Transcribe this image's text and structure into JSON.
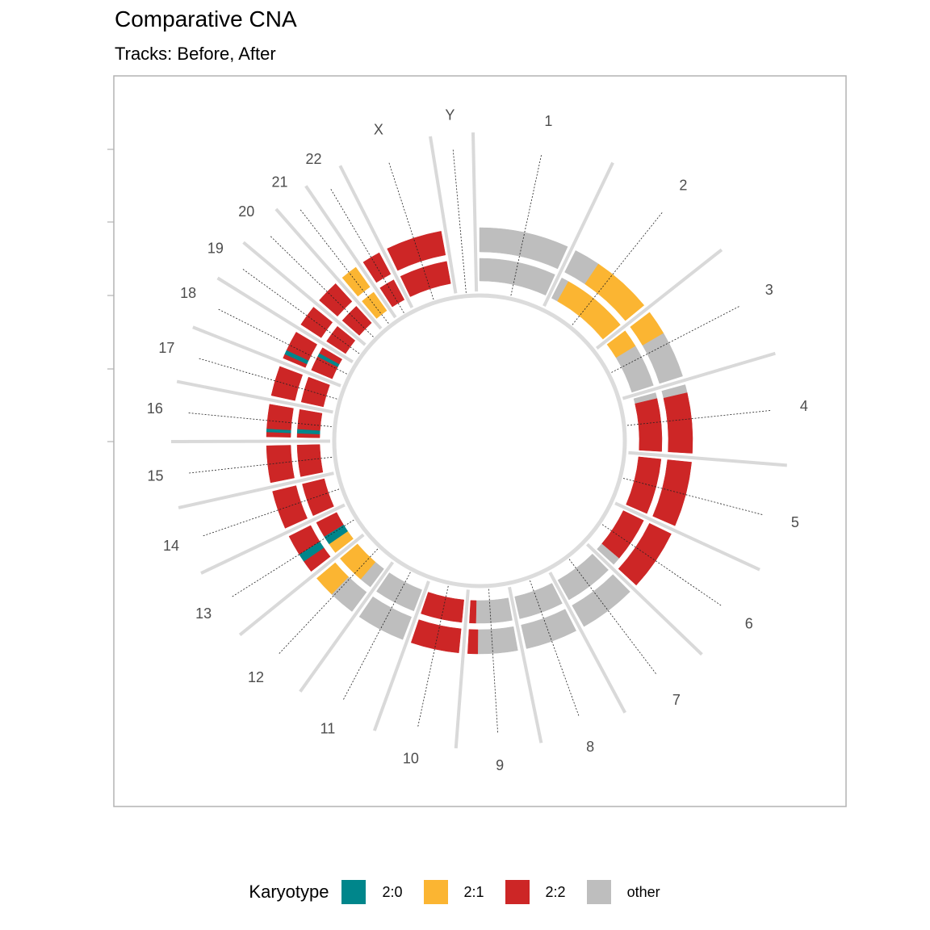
{
  "title": "Comparative CNA",
  "subtitle": "Tracks: Before, After",
  "legend": {
    "title": "Karyotype",
    "items": [
      {
        "label": "2:0",
        "color": "#00868B"
      },
      {
        "label": "2:1",
        "color": "#FBB532"
      },
      {
        "label": "2:2",
        "color": "#CD2626"
      },
      {
        "label": "other",
        "color": "#BEBEBE"
      }
    ]
  },
  "chart_data": {
    "type": "circos",
    "tracks": [
      "Before",
      "After"
    ],
    "chromosomes": [
      {
        "name": "1",
        "length": 249
      },
      {
        "name": "2",
        "length": 242
      },
      {
        "name": "3",
        "length": 198
      },
      {
        "name": "4",
        "length": 190
      },
      {
        "name": "5",
        "length": 181
      },
      {
        "name": "6",
        "length": 171
      },
      {
        "name": "7",
        "length": 159
      },
      {
        "name": "8",
        "length": 145
      },
      {
        "name": "9",
        "length": 138
      },
      {
        "name": "10",
        "length": 134
      },
      {
        "name": "11",
        "length": 135
      },
      {
        "name": "12",
        "length": 133
      },
      {
        "name": "13",
        "length": 114
      },
      {
        "name": "14",
        "length": 107
      },
      {
        "name": "15",
        "length": 102
      },
      {
        "name": "16",
        "length": 90
      },
      {
        "name": "17",
        "length": 83
      },
      {
        "name": "18",
        "length": 80
      },
      {
        "name": "19",
        "length": 59
      },
      {
        "name": "20",
        "length": 64
      },
      {
        "name": "21",
        "length": 47
      },
      {
        "name": "22",
        "length": 51
      },
      {
        "name": "X",
        "length": 156
      },
      {
        "name": "Y",
        "length": 57
      }
    ],
    "segments": {
      "Before": [
        {
          "chr": "1",
          "from": 0,
          "to": 1,
          "karyotype": "other"
        },
        {
          "chr": "2",
          "from": 0,
          "to": 0.3,
          "karyotype": "other"
        },
        {
          "chr": "2",
          "from": 0.3,
          "to": 1,
          "karyotype": "2:1"
        },
        {
          "chr": "3",
          "from": 0,
          "to": 0.35,
          "karyotype": "2:1"
        },
        {
          "chr": "3",
          "from": 0.35,
          "to": 1,
          "karyotype": "other"
        },
        {
          "chr": "4",
          "from": 0,
          "to": 0.12,
          "karyotype": "other"
        },
        {
          "chr": "4",
          "from": 0.12,
          "to": 1,
          "karyotype": "2:2"
        },
        {
          "chr": "5",
          "from": 0,
          "to": 1,
          "karyotype": "2:2"
        },
        {
          "chr": "6",
          "from": 0,
          "to": 1,
          "karyotype": "2:2"
        },
        {
          "chr": "7",
          "from": 0,
          "to": 1,
          "karyotype": "other"
        },
        {
          "chr": "8",
          "from": 0,
          "to": 1,
          "karyotype": "other"
        },
        {
          "chr": "9",
          "from": 0,
          "to": 0.8,
          "karyotype": "other"
        },
        {
          "chr": "9",
          "from": 0.8,
          "to": 1,
          "karyotype": "2:2"
        },
        {
          "chr": "10",
          "from": 0,
          "to": 1,
          "karyotype": "2:2"
        },
        {
          "chr": "11",
          "from": 0,
          "to": 0.5,
          "karyotype": "other"
        },
        {
          "chr": "11",
          "from": 0.5,
          "to": 1,
          "karyotype": "other"
        },
        {
          "chr": "12",
          "from": 0,
          "to": 0.55,
          "karyotype": "other"
        },
        {
          "chr": "12",
          "from": 0.55,
          "to": 1,
          "karyotype": "2:1"
        },
        {
          "chr": "13",
          "from": 0,
          "to": 0.3,
          "karyotype": "2:2"
        },
        {
          "chr": "13",
          "from": 0.3,
          "to": 0.5,
          "karyotype": "2:0"
        },
        {
          "chr": "13",
          "from": 0.5,
          "to": 1,
          "karyotype": "2:2"
        },
        {
          "chr": "14",
          "from": 0,
          "to": 1,
          "karyotype": "2:2"
        },
        {
          "chr": "15",
          "from": 0,
          "to": 1,
          "karyotype": "2:2"
        },
        {
          "chr": "16",
          "from": 0,
          "to": 0.15,
          "karyotype": "2:2"
        },
        {
          "chr": "16",
          "from": 0.15,
          "to": 0.25,
          "karyotype": "2:0"
        },
        {
          "chr": "16",
          "from": 0.25,
          "to": 1,
          "karyotype": "2:2"
        },
        {
          "chr": "17",
          "from": 0,
          "to": 1,
          "karyotype": "2:2"
        },
        {
          "chr": "18",
          "from": 0,
          "to": 0.15,
          "karyotype": "2:2"
        },
        {
          "chr": "18",
          "from": 0.15,
          "to": 0.3,
          "karyotype": "2:0"
        },
        {
          "chr": "18",
          "from": 0.3,
          "to": 1,
          "karyotype": "2:2"
        },
        {
          "chr": "19",
          "from": 0,
          "to": 1,
          "karyotype": "2:2"
        },
        {
          "chr": "20",
          "from": 0,
          "to": 1,
          "karyotype": "2:2"
        },
        {
          "chr": "21",
          "from": 0,
          "to": 1,
          "karyotype": "2:1"
        },
        {
          "chr": "22",
          "from": 0,
          "to": 1,
          "karyotype": "2:2"
        },
        {
          "chr": "X",
          "from": 0,
          "to": 1,
          "karyotype": "2:2"
        }
      ],
      "After": [
        {
          "chr": "1",
          "from": 0,
          "to": 1,
          "karyotype": "other"
        },
        {
          "chr": "2",
          "from": 0,
          "to": 0.1,
          "karyotype": "other"
        },
        {
          "chr": "2",
          "from": 0.1,
          "to": 1,
          "karyotype": "2:1"
        },
        {
          "chr": "3",
          "from": 0,
          "to": 0.3,
          "karyotype": "2:1"
        },
        {
          "chr": "3",
          "from": 0.3,
          "to": 1,
          "karyotype": "other"
        },
        {
          "chr": "4",
          "from": 0,
          "to": 0.1,
          "karyotype": "other"
        },
        {
          "chr": "4",
          "from": 0.1,
          "to": 1,
          "karyotype": "2:2"
        },
        {
          "chr": "5",
          "from": 0,
          "to": 1,
          "karyotype": "2:2"
        },
        {
          "chr": "6",
          "from": 0,
          "to": 0.85,
          "karyotype": "2:2"
        },
        {
          "chr": "6",
          "from": 0.85,
          "to": 1,
          "karyotype": "other"
        },
        {
          "chr": "7",
          "from": 0,
          "to": 1,
          "karyotype": "other"
        },
        {
          "chr": "8",
          "from": 0,
          "to": 1,
          "karyotype": "other"
        },
        {
          "chr": "9",
          "from": 0,
          "to": 0.85,
          "karyotype": "other"
        },
        {
          "chr": "9",
          "from": 0.85,
          "to": 1,
          "karyotype": "2:2"
        },
        {
          "chr": "10",
          "from": 0,
          "to": 1,
          "karyotype": "2:2"
        },
        {
          "chr": "11",
          "from": 0,
          "to": 1,
          "karyotype": "other"
        },
        {
          "chr": "12",
          "from": 0,
          "to": 0.3,
          "karyotype": "other"
        },
        {
          "chr": "12",
          "from": 0.3,
          "to": 1,
          "karyotype": "2:1"
        },
        {
          "chr": "13",
          "from": 0,
          "to": 0.3,
          "karyotype": "2:1"
        },
        {
          "chr": "13",
          "from": 0.3,
          "to": 0.55,
          "karyotype": "2:0"
        },
        {
          "chr": "13",
          "from": 0.55,
          "to": 1,
          "karyotype": "2:2"
        },
        {
          "chr": "14",
          "from": 0,
          "to": 1,
          "karyotype": "2:2"
        },
        {
          "chr": "15",
          "from": 0,
          "to": 1,
          "karyotype": "2:2"
        },
        {
          "chr": "16",
          "from": 0,
          "to": 0.15,
          "karyotype": "2:2"
        },
        {
          "chr": "16",
          "from": 0.15,
          "to": 0.3,
          "karyotype": "2:0"
        },
        {
          "chr": "16",
          "from": 0.3,
          "to": 1,
          "karyotype": "2:2"
        },
        {
          "chr": "17",
          "from": 0,
          "to": 1,
          "karyotype": "2:2"
        },
        {
          "chr": "18",
          "from": 0,
          "to": 0.6,
          "karyotype": "2:2"
        },
        {
          "chr": "18",
          "from": 0.6,
          "to": 0.75,
          "karyotype": "2:0"
        },
        {
          "chr": "18",
          "from": 0.75,
          "to": 1,
          "karyotype": "2:2"
        },
        {
          "chr": "19",
          "from": 0,
          "to": 1,
          "karyotype": "2:2"
        },
        {
          "chr": "20",
          "from": 0,
          "to": 1,
          "karyotype": "2:2"
        },
        {
          "chr": "21",
          "from": 0,
          "to": 1,
          "karyotype": "2:1"
        },
        {
          "chr": "22",
          "from": 0,
          "to": 1,
          "karyotype": "2:2"
        },
        {
          "chr": "X",
          "from": 0,
          "to": 1,
          "karyotype": "2:2"
        }
      ]
    }
  }
}
